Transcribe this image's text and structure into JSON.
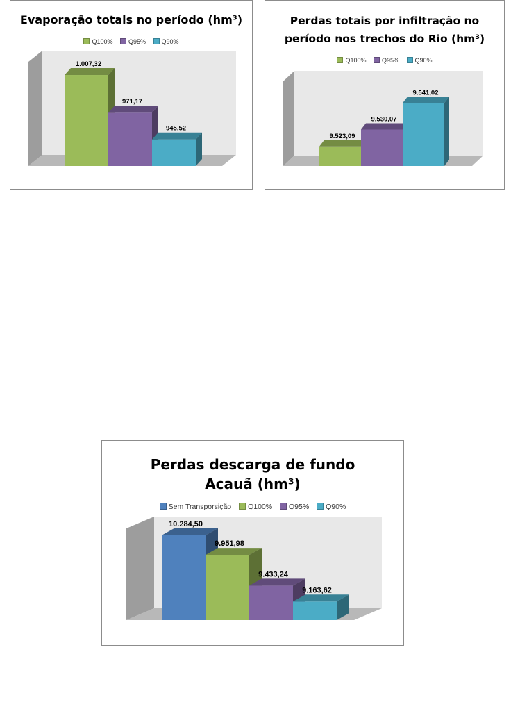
{
  "chart_data": [
    {
      "type": "bar",
      "title": "Evaporação totais no período (hm³)",
      "categories": [
        "Q100%",
        "Q95%",
        "Q90%"
      ],
      "values": [
        1007.32,
        971.17,
        945.52
      ],
      "data_labels": [
        "1.007,32",
        "971,17",
        "945,52"
      ],
      "colors": [
        "#9bbb59",
        "#8064a2",
        "#4bacc6"
      ],
      "ylim": [
        920,
        1020
      ],
      "grid": false,
      "legend_position": "top"
    },
    {
      "type": "bar",
      "title": "Perdas totais por infiltração no período nos trechos do Rio (hm³)",
      "categories": [
        "Q100%",
        "Q95%",
        "Q90%"
      ],
      "values": [
        9523.09,
        9530.07,
        9541.02
      ],
      "data_labels": [
        "9.523,09",
        "9.530,07",
        "9.541,02"
      ],
      "colors": [
        "#9bbb59",
        "#8064a2",
        "#4bacc6"
      ],
      "ylim": [
        9515,
        9550
      ],
      "grid": false,
      "legend_position": "top"
    },
    {
      "type": "bar",
      "title": "Perdas descarga de fundo Acauã (hm³)",
      "categories": [
        "Sem Transporsição",
        "Q100%",
        "Q95%",
        "Q90%"
      ],
      "values": [
        10284.5,
        9951.98,
        9433.24,
        9163.62
      ],
      "data_labels": [
        "10.284,50",
        "9.951,98",
        "9.433,24",
        "9.163,62"
      ],
      "colors": [
        "#4f81bd",
        "#9bbb59",
        "#8064a2",
        "#4bacc6"
      ],
      "ylim": [
        8850,
        10400
      ],
      "grid": false,
      "legend_position": "top"
    }
  ]
}
